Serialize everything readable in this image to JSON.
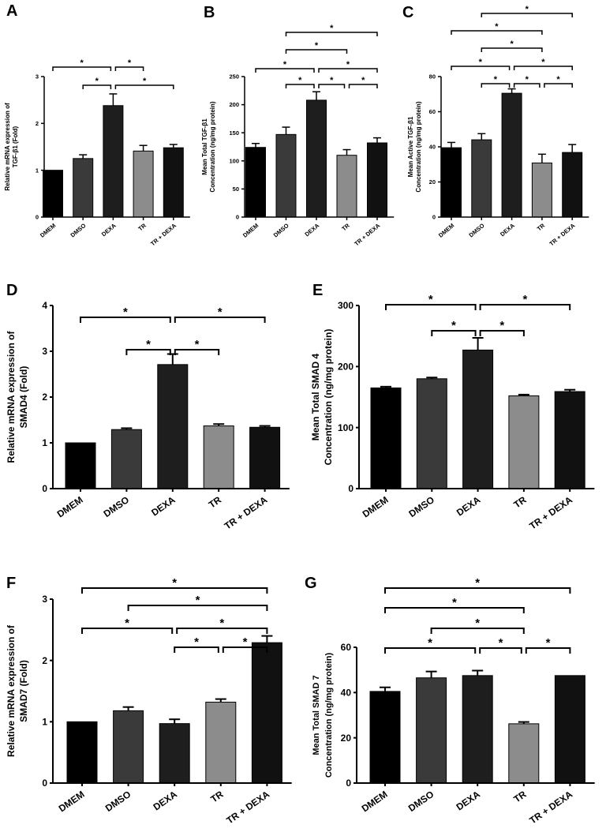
{
  "figure": {
    "colors": {
      "DMEM": "#000000",
      "DMSO": "#3a3a3a",
      "DEXA": "#1e1e1e",
      "TR": "#8c8c8c",
      "TR + DEXA": "#111111"
    }
  },
  "chart_data": [
    {
      "type": "bar",
      "panel": "A",
      "categories": [
        "DMEM",
        "DMSO",
        "DEXA",
        "TR",
        "TR + DEXA"
      ],
      "values": [
        1.0,
        1.25,
        2.38,
        1.41,
        1.48
      ],
      "errors": [
        0,
        0.08,
        0.25,
        0.12,
        0.07
      ],
      "ylabel": [
        "Relative mRNA expression of",
        "TGF-β1 (Fold)"
      ],
      "ylim": [
        0,
        3
      ],
      "yticks": [
        "0",
        "1",
        "2",
        "3"
      ],
      "significance": [
        {
          "from": 0,
          "to": 2,
          "label": "*"
        },
        {
          "from": 2,
          "to": 4,
          "label": "*"
        },
        {
          "from": 1,
          "to": 2,
          "label": "*"
        },
        {
          "from": 2,
          "to": 3,
          "label": "*"
        }
      ]
    },
    {
      "type": "bar",
      "panel": "B",
      "categories": [
        "DMEM",
        "DMSO",
        "DEXA",
        "TR",
        "TR + DEXA"
      ],
      "values": [
        124,
        147,
        208,
        110,
        132
      ],
      "errors": [
        7,
        13,
        15,
        10,
        9
      ],
      "ylabel": [
        "Mean Total TGF-β1",
        "Concentration (ng/mg protein)"
      ],
      "ylim": [
        0,
        250
      ],
      "yticks": [
        "0",
        "50",
        "100",
        "150",
        "200",
        "250"
      ],
      "significance": [
        {
          "from": 1,
          "to": 4,
          "label": "*"
        },
        {
          "from": 1,
          "to": 3,
          "label": "*"
        },
        {
          "from": 0,
          "to": 2,
          "label": "*"
        },
        {
          "from": 2,
          "to": 4,
          "label": "*"
        },
        {
          "from": 1,
          "to": 2,
          "label": "*"
        },
        {
          "from": 2,
          "to": 3,
          "label": "*"
        },
        {
          "from": 3,
          "to": 4,
          "label": "*"
        }
      ]
    },
    {
      "type": "bar",
      "panel": "C",
      "categories": [
        "DMEM",
        "DMSO",
        "DEXA",
        "TR",
        "TR + DEXA"
      ],
      "values": [
        39.5,
        44,
        70.5,
        30.8,
        36.8
      ],
      "errors": [
        3,
        3.5,
        2.5,
        5,
        4.5
      ],
      "ylabel": [
        "Mean Active TGF-β1",
        "Concentration (ng/mg protein)"
      ],
      "ylim": [
        0,
        80
      ],
      "yticks": [
        "0",
        "20",
        "40",
        "60",
        "80"
      ],
      "significance": [
        {
          "from": 1,
          "to": 4,
          "label": "*"
        },
        {
          "from": 0,
          "to": 3,
          "label": "*"
        },
        {
          "from": 1,
          "to": 3,
          "label": "*"
        },
        {
          "from": 0,
          "to": 2,
          "label": "*"
        },
        {
          "from": 2,
          "to": 4,
          "label": "*"
        },
        {
          "from": 1,
          "to": 2,
          "label": "*"
        },
        {
          "from": 2,
          "to": 3,
          "label": "*"
        },
        {
          "from": 3,
          "to": 4,
          "label": "*"
        }
      ]
    },
    {
      "type": "bar",
      "panel": "D",
      "categories": [
        "DMEM",
        "DMSO",
        "DEXA",
        "TR",
        "TR + DEXA"
      ],
      "values": [
        1.0,
        1.29,
        2.71,
        1.37,
        1.34
      ],
      "errors": [
        0,
        0.03,
        0.23,
        0.04,
        0.03
      ],
      "ylabel": [
        "Relative mRNA expression of",
        "SMAD4 (Fold)"
      ],
      "ylim": [
        0,
        4
      ],
      "yticks": [
        "0",
        "1",
        "2",
        "3",
        "4"
      ],
      "significance": [
        {
          "from": 0,
          "to": 2,
          "label": "*"
        },
        {
          "from": 2,
          "to": 4,
          "label": "*"
        },
        {
          "from": 1,
          "to": 2,
          "label": "*"
        },
        {
          "from": 2,
          "to": 3,
          "label": "*"
        }
      ]
    },
    {
      "type": "bar",
      "panel": "E",
      "categories": [
        "DMEM",
        "DMSO",
        "DEXA",
        "TR",
        "TR + DEXA"
      ],
      "values": [
        165,
        180,
        227,
        152,
        159
      ],
      "errors": [
        2,
        2,
        20,
        2,
        3
      ],
      "ylabel": [
        "Mean Total SMAD 4",
        "Concentration (ng/mg protein)"
      ],
      "ylim": [
        0,
        300
      ],
      "yticks": [
        "0",
        "100",
        "200",
        "300"
      ],
      "significance": [
        {
          "from": 0,
          "to": 2,
          "label": "*"
        },
        {
          "from": 2,
          "to": 4,
          "label": "*"
        },
        {
          "from": 1,
          "to": 2,
          "label": "*"
        },
        {
          "from": 2,
          "to": 3,
          "label": "*"
        }
      ]
    },
    {
      "type": "bar",
      "panel": "F",
      "categories": [
        "DMEM",
        "DMSO",
        "DEXA",
        "TR",
        "TR + DEXA"
      ],
      "values": [
        1.0,
        1.18,
        0.97,
        1.32,
        2.29
      ],
      "errors": [
        0,
        0.06,
        0.07,
        0.05,
        0.11
      ],
      "ylabel": [
        "Relative mRNA expression of",
        "SMAD7 (Fold)"
      ],
      "ylim": [
        0,
        3
      ],
      "yticks": [
        "0",
        "1",
        "2",
        "3"
      ],
      "significance": [
        {
          "from": 0,
          "to": 4,
          "label": "*"
        },
        {
          "from": 1,
          "to": 4,
          "label": "*"
        },
        {
          "from": 0,
          "to": 2,
          "label": "*"
        },
        {
          "from": 2,
          "to": 4,
          "label": "*"
        },
        {
          "from": 2,
          "to": 3,
          "label": "*"
        },
        {
          "from": 3,
          "to": 4,
          "label": "*"
        }
      ]
    },
    {
      "type": "bar",
      "panel": "G",
      "categories": [
        "DMEM",
        "DMSO",
        "DEXA",
        "TR",
        "TR + DEXA"
      ],
      "values": [
        40.5,
        46.5,
        47.5,
        26.2,
        47.5
      ],
      "errors": [
        1.8,
        2.8,
        2.2,
        0.8,
        0
      ],
      "ylabel": [
        "Mean Total SMAD 7",
        "Concentration (ng/mg protein)"
      ],
      "ylim": [
        0,
        60
      ],
      "yticks": [
        "0",
        "20",
        "40",
        "60"
      ],
      "significance": [
        {
          "from": 0,
          "to": 4,
          "label": "*"
        },
        {
          "from": 0,
          "to": 3,
          "label": "*"
        },
        {
          "from": 1,
          "to": 3,
          "label": "*"
        },
        {
          "from": 0,
          "to": 2,
          "label": "*"
        },
        {
          "from": 2,
          "to": 3,
          "label": "*"
        },
        {
          "from": 3,
          "to": 4,
          "label": "*"
        }
      ]
    }
  ]
}
